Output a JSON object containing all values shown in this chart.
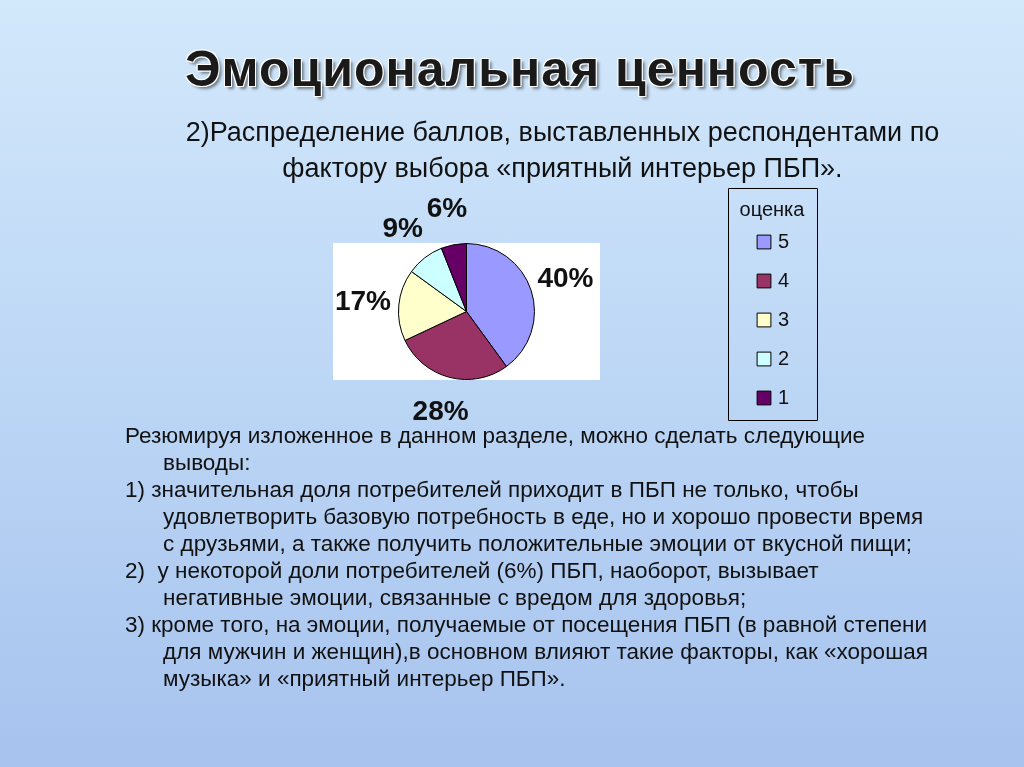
{
  "chart_data": {
    "type": "pie",
    "title": "Эмоциональная ценность",
    "subtitle": "2)Распределение баллов, выставленных респондентами по фактору выбора «приятный интерьер ПБП».",
    "legend_title": "оценка",
    "categories": [
      "5",
      "4",
      "3",
      "2",
      "1"
    ],
    "values": [
      40,
      28,
      17,
      9,
      6
    ],
    "colors": [
      "#9999ff",
      "#993366",
      "#ffffcc",
      "#ccffff",
      "#660066"
    ],
    "value_labels": [
      "40%",
      "28%",
      "17%",
      "9%",
      "6%"
    ],
    "legend": "right",
    "annotations": [
      "Резюмируя изложенное в данном разделе, можно сделать следующие выводы:",
      "1) значительная доля потребителей приходит в ПБП не только, чтобы удовлетворить базовую потребность в еде, но и хорошо провести время с друзьями, а также получить положительные эмоции от вкусной пищи;",
      "2)  у некоторой доли потребителей (6%) ПБП, наоборот, вызывает негативные эмоции, связанные с вредом для здоровья;",
      "3) кроме того, на эмоции, получаемые от посещения ПБП (в равной степени для мужчин и женщин),в основном влияют такие факторы, как «хорошая музыка» и «приятный интерьер ПБП»."
    ]
  }
}
